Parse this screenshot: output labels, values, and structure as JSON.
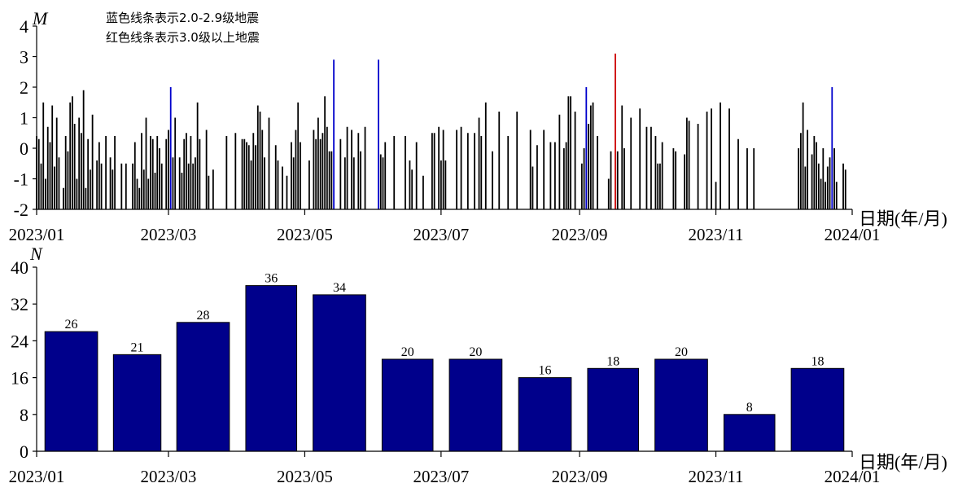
{
  "chart_data": [
    {
      "type": "line",
      "ylabel": "M",
      "xlabel": "日期(年/月)",
      "ylim": [
        -2,
        4
      ],
      "yticks": [
        "4",
        "3",
        "2",
        "1",
        "0",
        "-1",
        "-2"
      ],
      "xlim": [
        "2023-01-01",
        "2024-01-01"
      ],
      "xticks": [
        "2023/01",
        "2023/03",
        "2023/05",
        "2023/07",
        "2023/09",
        "2023/11",
        "2024/01"
      ],
      "legend": [
        {
          "text": "蓝色线条表示2.0-2.9级地震",
          "color": "#0000cc"
        },
        {
          "text": "红色线条表示3.0级以上地震",
          "color": "#cc0000"
        }
      ],
      "colors": {
        "small": "#000000",
        "mid": "#0000cc",
        "large": "#cc0000"
      },
      "events": [
        [
          "2023-01-01",
          0.4
        ],
        [
          "2023-01-02",
          0.3
        ],
        [
          "2023-01-03",
          -0.5
        ],
        [
          "2023-01-04",
          1.5
        ],
        [
          "2023-01-05",
          -1.0
        ],
        [
          "2023-01-06",
          0.7
        ],
        [
          "2023-01-07",
          0.2
        ],
        [
          "2023-01-08",
          1.4
        ],
        [
          "2023-01-09",
          -0.6
        ],
        [
          "2023-01-10",
          1.0
        ],
        [
          "2023-01-11",
          -0.3
        ],
        [
          "2023-01-13",
          -1.3
        ],
        [
          "2023-01-14",
          0.4
        ],
        [
          "2023-01-15",
          -0.1
        ],
        [
          "2023-01-16",
          1.5
        ],
        [
          "2023-01-17",
          1.7
        ],
        [
          "2023-01-18",
          0.8
        ],
        [
          "2023-01-19",
          -1.0
        ],
        [
          "2023-01-20",
          1.0
        ],
        [
          "2023-01-21",
          0.5
        ],
        [
          "2023-01-22",
          1.9
        ],
        [
          "2023-01-23",
          -1.3
        ],
        [
          "2023-01-24",
          0.3
        ],
        [
          "2023-01-25",
          -0.7
        ],
        [
          "2023-01-26",
          1.1
        ],
        [
          "2023-01-28",
          -0.4
        ],
        [
          "2023-01-29",
          0.2
        ],
        [
          "2023-01-30",
          -0.5
        ],
        [
          "2023-02-01",
          0.4
        ],
        [
          "2023-02-03",
          -0.3
        ],
        [
          "2023-02-04",
          -0.7
        ],
        [
          "2023-02-05",
          0.4
        ],
        [
          "2023-02-08",
          -0.5
        ],
        [
          "2023-02-10",
          -0.5
        ],
        [
          "2023-02-13",
          -0.5
        ],
        [
          "2023-02-14",
          0.2
        ],
        [
          "2023-02-15",
          -1.0
        ],
        [
          "2023-02-16",
          -1.3
        ],
        [
          "2023-02-17",
          0.5
        ],
        [
          "2023-02-18",
          -0.7
        ],
        [
          "2023-02-19",
          1.0
        ],
        [
          "2023-02-20",
          -1.0
        ],
        [
          "2023-02-21",
          0.4
        ],
        [
          "2023-02-22",
          0.3
        ],
        [
          "2023-02-23",
          -0.8
        ],
        [
          "2023-02-24",
          0.4
        ],
        [
          "2023-02-25",
          0.0
        ],
        [
          "2023-02-26",
          -0.5
        ],
        [
          "2023-02-28",
          0.3
        ],
        [
          "2023-03-01",
          0.6
        ],
        [
          "2023-03-02",
          2.0
        ],
        [
          "2023-03-03",
          -0.3
        ],
        [
          "2023-03-04",
          1.0
        ],
        [
          "2023-03-06",
          -0.3
        ],
        [
          "2023-03-07",
          -0.8
        ],
        [
          "2023-03-08",
          0.3
        ],
        [
          "2023-03-09",
          0.5
        ],
        [
          "2023-03-10",
          -0.5
        ],
        [
          "2023-03-11",
          0.4
        ],
        [
          "2023-03-12",
          -0.5
        ],
        [
          "2023-03-13",
          -0.3
        ],
        [
          "2023-03-14",
          1.5
        ],
        [
          "2023-03-15",
          0.3
        ],
        [
          "2023-03-18",
          0.6
        ],
        [
          "2023-03-19",
          -0.9
        ],
        [
          "2023-03-21",
          -0.7
        ],
        [
          "2023-03-27",
          0.4
        ],
        [
          "2023-03-31",
          0.5
        ],
        [
          "2023-04-03",
          0.3
        ],
        [
          "2023-04-04",
          0.3
        ],
        [
          "2023-04-05",
          0.2
        ],
        [
          "2023-04-06",
          0.1
        ],
        [
          "2023-04-07",
          -0.4
        ],
        [
          "2023-04-08",
          0.5
        ],
        [
          "2023-04-09",
          0.1
        ],
        [
          "2023-04-10",
          1.4
        ],
        [
          "2023-04-11",
          1.2
        ],
        [
          "2023-04-12",
          0.6
        ],
        [
          "2023-04-13",
          -0.3
        ],
        [
          "2023-04-15",
          1.0
        ],
        [
          "2023-04-18",
          0.1
        ],
        [
          "2023-04-19",
          -0.4
        ],
        [
          "2023-04-21",
          -0.6
        ],
        [
          "2023-04-23",
          -0.9
        ],
        [
          "2023-04-25",
          0.2
        ],
        [
          "2023-04-26",
          -0.3
        ],
        [
          "2023-04-27",
          0.6
        ],
        [
          "2023-04-28",
          1.5
        ],
        [
          "2023-04-29",
          0.2
        ],
        [
          "2023-05-03",
          -0.4
        ],
        [
          "2023-05-05",
          0.6
        ],
        [
          "2023-05-06",
          0.3
        ],
        [
          "2023-05-07",
          1.0
        ],
        [
          "2023-05-08",
          0.3
        ],
        [
          "2023-05-09",
          0.5
        ],
        [
          "2023-05-10",
          1.7
        ],
        [
          "2023-05-11",
          0.7
        ],
        [
          "2023-05-12",
          -0.1
        ],
        [
          "2023-05-13",
          -0.1
        ],
        [
          "2023-05-14",
          2.9
        ],
        [
          "2023-05-17",
          0.3
        ],
        [
          "2023-05-19",
          -0.3
        ],
        [
          "2023-05-20",
          0.7
        ],
        [
          "2023-05-22",
          0.6
        ],
        [
          "2023-05-23",
          -0.3
        ],
        [
          "2023-05-25",
          0.5
        ],
        [
          "2023-05-26",
          -0.1
        ],
        [
          "2023-05-28",
          0.7
        ],
        [
          "2023-06-03",
          2.9
        ],
        [
          "2023-06-04",
          -0.2
        ],
        [
          "2023-06-05",
          -0.3
        ],
        [
          "2023-06-06",
          0.2
        ],
        [
          "2023-06-10",
          0.4
        ],
        [
          "2023-06-15",
          0.4
        ],
        [
          "2023-06-17",
          -0.4
        ],
        [
          "2023-06-18",
          -0.7
        ],
        [
          "2023-06-20",
          0.2
        ],
        [
          "2023-06-23",
          -0.9
        ],
        [
          "2023-06-27",
          0.5
        ],
        [
          "2023-06-28",
          0.5
        ],
        [
          "2023-06-30",
          0.7
        ],
        [
          "2023-07-01",
          -0.4
        ],
        [
          "2023-07-02",
          0.6
        ],
        [
          "2023-07-03",
          -0.4
        ],
        [
          "2023-07-08",
          0.6
        ],
        [
          "2023-07-10",
          0.7
        ],
        [
          "2023-07-13",
          0.5
        ],
        [
          "2023-07-16",
          0.5
        ],
        [
          "2023-07-18",
          1.0
        ],
        [
          "2023-07-19",
          0.4
        ],
        [
          "2023-07-21",
          1.5
        ],
        [
          "2023-07-24",
          -0.1
        ],
        [
          "2023-07-27",
          1.2
        ],
        [
          "2023-07-31",
          0.4
        ],
        [
          "2023-08-04",
          1.2
        ],
        [
          "2023-08-10",
          0.6
        ],
        [
          "2023-08-11",
          -0.6
        ],
        [
          "2023-08-13",
          0.1
        ],
        [
          "2023-08-16",
          0.6
        ],
        [
          "2023-08-19",
          0.2
        ],
        [
          "2023-08-21",
          0.2
        ],
        [
          "2023-08-23",
          1.1
        ],
        [
          "2023-08-25",
          0.0
        ],
        [
          "2023-08-26",
          0.2
        ],
        [
          "2023-08-27",
          1.7
        ],
        [
          "2023-08-28",
          1.7
        ],
        [
          "2023-08-30",
          1.2
        ],
        [
          "2023-09-02",
          -0.5
        ],
        [
          "2023-09-03",
          0.0
        ],
        [
          "2023-09-04",
          2.0
        ],
        [
          "2023-09-05",
          0.8
        ],
        [
          "2023-09-06",
          1.4
        ],
        [
          "2023-09-07",
          1.5
        ],
        [
          "2023-09-09",
          0.4
        ],
        [
          "2023-09-14",
          -1.0
        ],
        [
          "2023-09-15",
          -0.1
        ],
        [
          "2023-09-17",
          3.1
        ],
        [
          "2023-09-18",
          -0.1
        ],
        [
          "2023-09-20",
          1.4
        ],
        [
          "2023-09-21",
          0.0
        ],
        [
          "2023-09-24",
          1.0
        ],
        [
          "2023-09-28",
          1.3
        ],
        [
          "2023-10-01",
          0.7
        ],
        [
          "2023-10-03",
          0.7
        ],
        [
          "2023-10-05",
          0.4
        ],
        [
          "2023-10-06",
          -0.5
        ],
        [
          "2023-10-07",
          -0.5
        ],
        [
          "2023-10-08",
          0.2
        ],
        [
          "2023-10-13",
          0.0
        ],
        [
          "2023-10-14",
          -0.1
        ],
        [
          "2023-10-18",
          -0.2
        ],
        [
          "2023-10-19",
          1.0
        ],
        [
          "2023-10-20",
          0.9
        ],
        [
          "2023-10-24",
          0.8
        ],
        [
          "2023-10-28",
          1.2
        ],
        [
          "2023-10-30",
          1.3
        ],
        [
          "2023-11-01",
          -1.1
        ],
        [
          "2023-11-03",
          1.5
        ],
        [
          "2023-11-07",
          1.3
        ],
        [
          "2023-11-11",
          0.3
        ],
        [
          "2023-11-15",
          0.0
        ],
        [
          "2023-11-18",
          0.0
        ],
        [
          "2023-12-08",
          0.0
        ],
        [
          "2023-12-09",
          0.5
        ],
        [
          "2023-12-10",
          1.5
        ],
        [
          "2023-12-11",
          -0.6
        ],
        [
          "2023-12-12",
          0.6
        ],
        [
          "2023-12-14",
          -0.2
        ],
        [
          "2023-12-15",
          0.4
        ],
        [
          "2023-12-16",
          0.2
        ],
        [
          "2023-12-17",
          -0.5
        ],
        [
          "2023-12-18",
          -1.0
        ],
        [
          "2023-12-19",
          0.0
        ],
        [
          "2023-12-20",
          -1.1
        ],
        [
          "2023-12-21",
          -0.6
        ],
        [
          "2023-12-22",
          -0.3
        ],
        [
          "2023-12-23",
          2.0
        ],
        [
          "2023-12-24",
          0.0
        ],
        [
          "2023-12-25",
          -1.1
        ],
        [
          "2023-12-28",
          -0.5
        ],
        [
          "2023-12-29",
          -0.7
        ]
      ]
    },
    {
      "type": "bar",
      "ylabel": "N",
      "xlabel": "日期(年/月)",
      "ylim": [
        0,
        40
      ],
      "yticks": [
        "0",
        "8",
        "16",
        "24",
        "32",
        "40"
      ],
      "xlim": [
        "2023-01-01",
        "2024-01-01"
      ],
      "xticks": [
        "2023/01",
        "2023/03",
        "2023/05",
        "2023/07",
        "2023/09",
        "2023/11",
        "2024/01"
      ],
      "bar_color": "#00008b",
      "categories": [
        "2023-01",
        "2023-02",
        "2023-03",
        "2023-04",
        "2023-05",
        "2023-06",
        "2023-07",
        "2023-08",
        "2023-09",
        "2023-10",
        "2023-11",
        "2023-12"
      ],
      "values": [
        26,
        21,
        28,
        36,
        34,
        20,
        20,
        16,
        18,
        20,
        8,
        18
      ]
    }
  ]
}
